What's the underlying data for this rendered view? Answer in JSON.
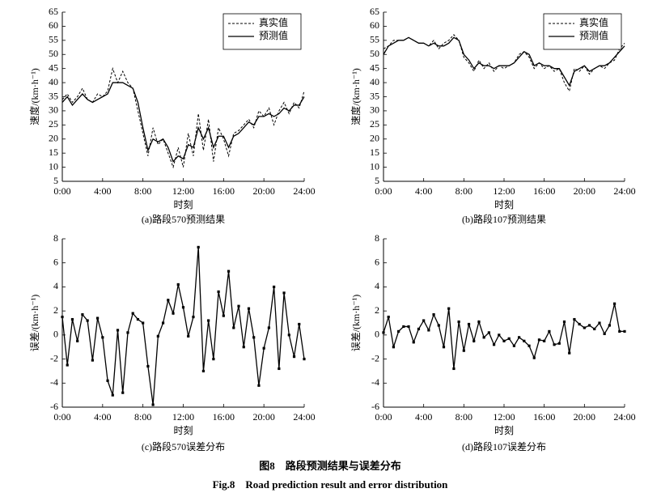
{
  "chart_data": [
    {
      "type": "line",
      "caption": "(a)路段570预测结果",
      "xlabel": "时刻",
      "ylabel": "速度/(km·h⁻¹)",
      "x": [
        0,
        0.5,
        1,
        1.5,
        2,
        2.5,
        3,
        3.5,
        4,
        4.5,
        5,
        5.5,
        6,
        6.5,
        7,
        7.5,
        8,
        8.5,
        9,
        9.5,
        10,
        10.5,
        11,
        11.5,
        12,
        12.5,
        13,
        13.5,
        14,
        14.5,
        15,
        15.5,
        16,
        16.5,
        17,
        17.5,
        18,
        18.5,
        19,
        19.5,
        20,
        20.5,
        21,
        21.5,
        22,
        22.5,
        23,
        23.5,
        24
      ],
      "series": [
        {
          "name": "真实值",
          "color": "#000000",
          "line_style": "dashed",
          "values": [
            34,
            36,
            33,
            35,
            38,
            34,
            33,
            36,
            35,
            37,
            45,
            40,
            44,
            40,
            38,
            30,
            22,
            14,
            24,
            18,
            20,
            15,
            10,
            17,
            10,
            22,
            14,
            29,
            16,
            27,
            12,
            24,
            20,
            14,
            22,
            23,
            25,
            27,
            24,
            30,
            28,
            31,
            25,
            30,
            33,
            29,
            33,
            31,
            37
          ]
        },
        {
          "name": "预测值",
          "color": "#000000",
          "line_style": "solid",
          "values": [
            33,
            35,
            32,
            34,
            36,
            34,
            33,
            34,
            35,
            36,
            40,
            40,
            40,
            39,
            38,
            33,
            24,
            16,
            20,
            19,
            20,
            17,
            12,
            14,
            13,
            18,
            17,
            24,
            20,
            24,
            17,
            21,
            21,
            17,
            21,
            22,
            24,
            26,
            25,
            28,
            28,
            29,
            28,
            29,
            31,
            30,
            32,
            32,
            35
          ]
        }
      ],
      "xlim": [
        0,
        24
      ],
      "xticks": [
        {
          "value": 0,
          "label": "0:00"
        },
        {
          "value": 4,
          "label": "4:00"
        },
        {
          "value": 8,
          "label": "8:00"
        },
        {
          "value": 12,
          "label": "12:00"
        },
        {
          "value": 16,
          "label": "16:00"
        },
        {
          "value": 20,
          "label": "20:00"
        },
        {
          "value": 24,
          "label": "24:00"
        }
      ],
      "ylim": [
        5,
        65
      ],
      "yticks": [
        5,
        10,
        15,
        20,
        25,
        30,
        35,
        40,
        45,
        50,
        55,
        60,
        65
      ],
      "legend": "upper right"
    },
    {
      "type": "line",
      "caption": "(b)路段107预测结果",
      "xlabel": "时刻",
      "ylabel": "速度/(km·h⁻¹)",
      "x": [
        0,
        0.5,
        1,
        1.5,
        2,
        2.5,
        3,
        3.5,
        4,
        4.5,
        5,
        5.5,
        6,
        6.5,
        7,
        7.5,
        8,
        8.5,
        9,
        9.5,
        10,
        10.5,
        11,
        11.5,
        12,
        12.5,
        13,
        13.5,
        14,
        14.5,
        15,
        15.5,
        16,
        16.5,
        17,
        17.5,
        18,
        18.5,
        19,
        19.5,
        20,
        20.5,
        21,
        21.5,
        22,
        22.5,
        23,
        23.5,
        24
      ],
      "series": [
        {
          "name": "真实值",
          "color": "#000000",
          "line_style": "dashed",
          "values": [
            52,
            53,
            55,
            55,
            55,
            56,
            55,
            54,
            54,
            53,
            55,
            52,
            54,
            55,
            57,
            55,
            49,
            47,
            44,
            48,
            45,
            47,
            44,
            46,
            45,
            46,
            47,
            50,
            51,
            49,
            45,
            47,
            45,
            46,
            44,
            45,
            40,
            37,
            45,
            44,
            46,
            43,
            45,
            46,
            45,
            47,
            48,
            52,
            54
          ]
        },
        {
          "name": "预测值",
          "color": "#000000",
          "line_style": "solid",
          "values": [
            50,
            53,
            54,
            55,
            55,
            56,
            55,
            54,
            54,
            53,
            54,
            53,
            53,
            54,
            56,
            55,
            50,
            48,
            45,
            47,
            46,
            46,
            45,
            46,
            46,
            46,
            47,
            49,
            51,
            50,
            46,
            47,
            46,
            46,
            45,
            45,
            42,
            39,
            44,
            45,
            46,
            44,
            45,
            46,
            46,
            47,
            49,
            51,
            53
          ]
        }
      ],
      "xlim": [
        0,
        24
      ],
      "xticks": [
        {
          "value": 0,
          "label": "0:00"
        },
        {
          "value": 4,
          "label": "4:00"
        },
        {
          "value": 8,
          "label": "8:00"
        },
        {
          "value": 12,
          "label": "12:00"
        },
        {
          "value": 16,
          "label": "16:00"
        },
        {
          "value": 20,
          "label": "20:00"
        },
        {
          "value": 24,
          "label": "24:00"
        }
      ],
      "ylim": [
        5,
        65
      ],
      "yticks": [
        5,
        10,
        15,
        20,
        25,
        30,
        35,
        40,
        45,
        50,
        55,
        60,
        65
      ],
      "legend": "upper right"
    },
    {
      "type": "line",
      "caption": "(c)路段570误差分布",
      "xlabel": "时刻",
      "ylabel": "误差/(km·h⁻¹)",
      "x": [
        0,
        0.5,
        1,
        1.5,
        2,
        2.5,
        3,
        3.5,
        4,
        4.5,
        5,
        5.5,
        6,
        6.5,
        7,
        7.5,
        8,
        8.5,
        9,
        9.5,
        10,
        10.5,
        11,
        11.5,
        12,
        12.5,
        13,
        13.5,
        14,
        14.5,
        15,
        15.5,
        16,
        16.5,
        17,
        17.5,
        18,
        18.5,
        19,
        19.5,
        20,
        20.5,
        21,
        21.5,
        22,
        22.5,
        23,
        23.5,
        24
      ],
      "values": [
        1.5,
        -2.5,
        1.3,
        -0.5,
        1.7,
        1.2,
        -2.1,
        1.4,
        -0.2,
        -3.8,
        -5,
        0.4,
        -4.8,
        0.2,
        1.8,
        1.3,
        1.0,
        -2.6,
        -5.8,
        -0.1,
        1.0,
        2.9,
        1.8,
        4.2,
        2.3,
        -0.1,
        1.5,
        7.3,
        -3.0,
        1.2,
        -2.0,
        3.6,
        1.6,
        5.3,
        0.6,
        2.4,
        -1.0,
        2.2,
        -0.2,
        -4.2,
        -1.1,
        0.6,
        4.0,
        -2.8,
        3.5,
        0.0,
        -1.8,
        0.9,
        -2.0
      ],
      "color": "#000000",
      "marker": true,
      "xlim": [
        0,
        24
      ],
      "xticks": [
        {
          "value": 0,
          "label": "0:00"
        },
        {
          "value": 4,
          "label": "4:00"
        },
        {
          "value": 8,
          "label": "8:00"
        },
        {
          "value": 12,
          "label": "12:00"
        },
        {
          "value": 16,
          "label": "16:00"
        },
        {
          "value": 20,
          "label": "20:00"
        },
        {
          "value": 24,
          "label": "24:00"
        }
      ],
      "ylim": [
        -6,
        8
      ],
      "yticks": [
        -6,
        -4,
        -2,
        0,
        2,
        4,
        6,
        8
      ]
    },
    {
      "type": "line",
      "caption": "(d)路段107误差分布",
      "xlabel": "时刻",
      "ylabel": "误差/(km·h⁻¹)",
      "x": [
        0,
        0.5,
        1,
        1.5,
        2,
        2.5,
        3,
        3.5,
        4,
        4.5,
        5,
        5.5,
        6,
        6.5,
        7,
        7.5,
        8,
        8.5,
        9,
        9.5,
        10,
        10.5,
        11,
        11.5,
        12,
        12.5,
        13,
        13.5,
        14,
        14.5,
        15,
        15.5,
        16,
        16.5,
        17,
        17.5,
        18,
        18.5,
        19,
        19.5,
        20,
        20.5,
        21,
        21.5,
        22,
        22.5,
        23,
        23.5,
        24
      ],
      "values": [
        0.2,
        1.5,
        -1.0,
        0.3,
        0.7,
        0.7,
        -0.6,
        0.5,
        1.2,
        0.4,
        1.7,
        0.8,
        -1.0,
        2.2,
        -2.8,
        1.1,
        -1.3,
        0.9,
        -0.5,
        1.1,
        -0.2,
        0.2,
        -0.8,
        0.0,
        -0.5,
        -0.3,
        -0.9,
        -0.2,
        -0.5,
        -0.9,
        -1.9,
        -0.4,
        -0.5,
        0.3,
        -0.8,
        -0.7,
        1.1,
        -1.5,
        1.3,
        0.9,
        0.6,
        0.8,
        0.5,
        1.0,
        0.1,
        0.8,
        2.6,
        0.3,
        0.3
      ],
      "color": "#000000",
      "marker": true,
      "xlim": [
        0,
        24
      ],
      "xticks": [
        {
          "value": 0,
          "label": "0:00"
        },
        {
          "value": 4,
          "label": "4:00"
        },
        {
          "value": 8,
          "label": "8:00"
        },
        {
          "value": 12,
          "label": "12:00"
        },
        {
          "value": 16,
          "label": "16:00"
        },
        {
          "value": 20,
          "label": "20:00"
        },
        {
          "value": 24,
          "label": "24:00"
        }
      ],
      "ylim": [
        -6,
        8
      ],
      "yticks": [
        -6,
        -4,
        -2,
        0,
        2,
        4,
        6,
        8
      ]
    }
  ],
  "figure_caption": "图8　路段预测结果与误差分布",
  "figure_caption_en": "Fig.8　Road prediction result and error distribution"
}
